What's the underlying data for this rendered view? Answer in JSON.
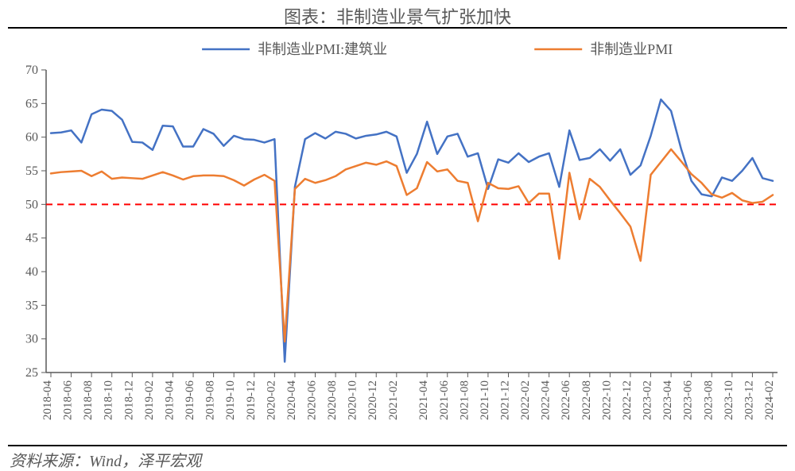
{
  "title": "图表：非制造业景气扩张加快",
  "source": "资料来源：Wind，泽平宏观",
  "chart": {
    "type": "line",
    "background_color": "#ffffff",
    "axis_color": "#595959",
    "text_color": "#595959",
    "ylim": [
      25,
      70
    ],
    "ytick_step": 5,
    "yticks": [
      25,
      30,
      35,
      40,
      45,
      50,
      55,
      60,
      65,
      70
    ],
    "reference_line": {
      "y": 50,
      "color": "#ff0000",
      "dash": "8,6"
    },
    "x_labels": [
      "2018-04",
      "2018-06",
      "2018-08",
      "2018-10",
      "2018-12",
      "2019-02",
      "2019-04",
      "2019-06",
      "2019-08",
      "2019-10",
      "2019-12",
      "2020-02",
      "2020-04",
      "2020-06",
      "2020-08",
      "2020-10",
      "2020-12",
      "2021-02",
      "2021-04",
      "2021-06",
      "2021-08",
      "2021-10",
      "2021-12",
      "2022-02",
      "2022-04",
      "2022-06",
      "2022-08",
      "2022-10",
      "2022-12",
      "2023-02",
      "2023-04",
      "2023-06",
      "2023-08",
      "2023-10",
      "2023-12",
      "2024-02"
    ],
    "label_fontsize": 15,
    "ylabel_fontsize": 16,
    "line_width": 2.5,
    "legend": {
      "position": "top-center",
      "fontsize": 18,
      "line_length": 60,
      "items": [
        {
          "key": "construction",
          "label": "非制造业PMI:建筑业",
          "color": "#4472c4"
        },
        {
          "key": "nonmfg",
          "label": "非制造业PMI",
          "color": "#ed7d31"
        }
      ]
    },
    "series": {
      "construction": {
        "color": "#4472c4",
        "values": [
          60.6,
          60.7,
          61.0,
          59.2,
          63.4,
          64.1,
          63.9,
          62.6,
          59.3,
          59.2,
          58.1,
          61.7,
          61.6,
          58.6,
          58.6,
          61.2,
          60.5,
          58.7,
          60.2,
          59.7,
          59.6,
          59.2,
          59.7,
          26.6,
          52.6,
          59.7,
          60.6,
          59.8,
          60.8,
          60.5,
          59.8,
          60.2,
          60.4,
          60.8,
          60.1,
          54.7,
          57.5,
          62.3,
          57.5,
          60.1,
          60.5,
          57.1,
          57.6,
          52.3,
          56.7,
          56.2,
          57.6,
          56.3,
          57.1,
          57.6,
          52.6,
          61.0,
          56.6,
          56.9,
          58.2,
          56.5,
          58.2,
          54.4,
          55.8,
          60.2,
          65.6,
          63.9,
          58.2,
          53.5,
          51.5,
          51.2,
          54.0,
          53.5,
          55.0,
          56.9,
          53.9,
          53.5
        ]
      },
      "nonmfg": {
        "color": "#ed7d31",
        "values": [
          54.6,
          54.8,
          54.9,
          55.0,
          54.2,
          54.9,
          53.8,
          54.0,
          53.9,
          53.8,
          54.3,
          54.8,
          54.3,
          53.7,
          54.2,
          54.3,
          54.3,
          54.2,
          53.6,
          52.8,
          53.7,
          54.4,
          53.5,
          29.6,
          52.3,
          53.8,
          53.2,
          53.6,
          54.2,
          55.2,
          55.7,
          56.2,
          55.9,
          56.4,
          55.7,
          51.4,
          52.4,
          56.3,
          54.9,
          55.2,
          53.5,
          53.2,
          47.5,
          53.2,
          52.4,
          52.3,
          52.7,
          50.2,
          51.6,
          51.6,
          41.9,
          54.7,
          47.8,
          53.8,
          52.6,
          50.6,
          48.7,
          46.7,
          41.6,
          54.4,
          56.3,
          58.2,
          56.4,
          54.5,
          53.2,
          51.5,
          51.0,
          51.7,
          50.6,
          50.2,
          50.4,
          51.4
        ]
      }
    }
  }
}
